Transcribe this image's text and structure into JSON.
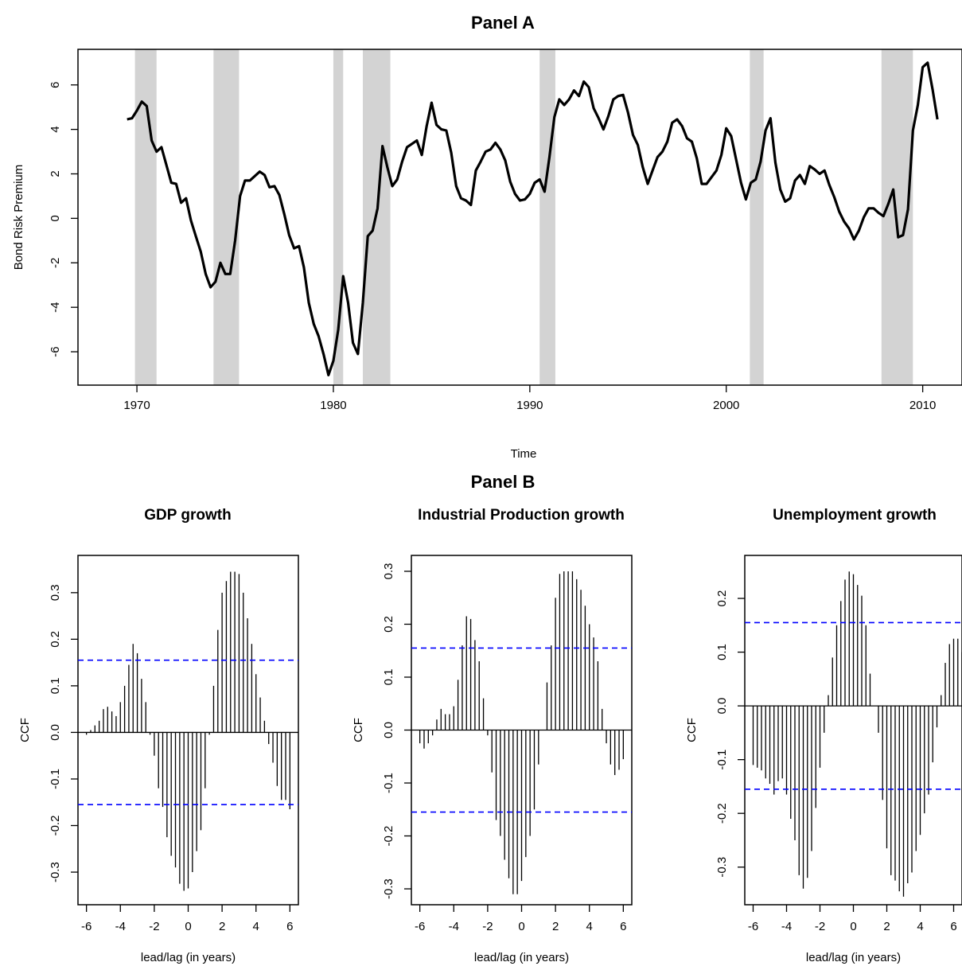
{
  "panel_a_title": "Panel A",
  "panel_b_title": "Panel B",
  "chart_data": [
    {
      "type": "line",
      "title": "Panel A",
      "xlabel": "Time",
      "ylabel": "Bond Risk Premium",
      "xlim": [
        1967,
        2012
      ],
      "ylim": [
        -7.5,
        7.6
      ],
      "x_ticks": [
        1970,
        1980,
        1990,
        2000,
        2010
      ],
      "y_ticks": [
        -6,
        -4,
        -2,
        0,
        2,
        4,
        6
      ],
      "line_color": "#000000",
      "shade_color": "#d3d3d3",
      "recessions": [
        [
          1969.9,
          1971.0
        ],
        [
          1973.9,
          1975.2
        ],
        [
          1980.0,
          1980.5
        ],
        [
          1981.5,
          1982.9
        ],
        [
          1990.5,
          1991.3
        ],
        [
          2001.2,
          2001.9
        ],
        [
          2007.9,
          2009.5
        ]
      ],
      "series": [
        {
          "x": [
            1969.5,
            1969.75,
            1970.0,
            1970.25,
            1970.5,
            1970.75,
            1971.0,
            1971.25,
            1971.5,
            1971.75,
            1972.0,
            1972.25,
            1972.5,
            1972.75,
            1973.0,
            1973.25,
            1973.5,
            1973.75,
            1974.0,
            1974.25,
            1974.5,
            1974.75,
            1975.0,
            1975.25,
            1975.5,
            1975.75,
            1976.0,
            1976.25,
            1976.5,
            1976.75,
            1977.0,
            1977.25,
            1977.5,
            1977.75,
            1978.0,
            1978.25,
            1978.5,
            1978.75,
            1979.0,
            1979.25,
            1979.5,
            1979.75,
            1980.0,
            1980.25,
            1980.5,
            1980.75,
            1981.0,
            1981.25,
            1981.5,
            1981.75,
            1982.0,
            1982.25,
            1982.5,
            1982.75,
            1983.0,
            1983.25,
            1983.5,
            1983.75,
            1984.0,
            1984.25,
            1984.5,
            1984.75,
            1985.0,
            1985.25,
            1985.5,
            1985.75,
            1986.0,
            1986.25,
            1986.5,
            1986.75,
            1987.0,
            1987.25,
            1987.5,
            1987.75,
            1988.0,
            1988.25,
            1988.5,
            1988.75,
            1989.0,
            1989.25,
            1989.5,
            1989.75,
            1990.0,
            1990.25,
            1990.5,
            1990.75,
            1991.0,
            1991.25,
            1991.5,
            1991.75,
            1992.0,
            1992.25,
            1992.5,
            1992.75,
            1993.0,
            1993.25,
            1993.5,
            1993.75,
            1994.0,
            1994.25,
            1994.5,
            1994.75,
            1995.0,
            1995.25,
            1995.5,
            1995.75,
            1996.0,
            1996.25,
            1996.5,
            1996.75,
            1997.0,
            1997.25,
            1997.5,
            1997.75,
            1998.0,
            1998.25,
            1998.5,
            1998.75,
            1999.0,
            1999.25,
            1999.5,
            1999.75,
            2000.0,
            2000.25,
            2000.5,
            2000.75,
            2001.0,
            2001.25,
            2001.5,
            2001.75,
            2002.0,
            2002.25,
            2002.5,
            2002.75,
            2003.0,
            2003.25,
            2003.5,
            2003.75,
            2004.0,
            2004.25,
            2004.5,
            2004.75,
            2005.0,
            2005.25,
            2005.5,
            2005.75,
            2006.0,
            2006.25,
            2006.5,
            2006.75,
            2007.0,
            2007.25,
            2007.5,
            2007.75,
            2008.0,
            2008.25,
            2008.5,
            2008.75,
            2009.0,
            2009.25,
            2009.5,
            2009.75,
            2010.0,
            2010.25,
            2010.5,
            2010.75
          ],
          "values": [
            4.45,
            4.5,
            4.85,
            5.25,
            5.05,
            3.5,
            3.0,
            3.2,
            2.4,
            1.6,
            1.55,
            0.7,
            0.9,
            -0.1,
            -0.8,
            -1.5,
            -2.5,
            -3.1,
            -2.85,
            -2.0,
            -2.5,
            -2.5,
            -1.0,
            1.0,
            1.7,
            1.7,
            1.9,
            2.1,
            1.95,
            1.4,
            1.45,
            1.05,
            0.2,
            -0.75,
            -1.35,
            -1.25,
            -2.2,
            -3.8,
            -4.75,
            -5.3,
            -6.1,
            -7.05,
            -6.4,
            -5.0,
            -2.6,
            -3.8,
            -5.6,
            -6.1,
            -3.8,
            -0.8,
            -0.55,
            0.45,
            3.25,
            2.3,
            1.45,
            1.75,
            2.55,
            3.2,
            3.35,
            3.5,
            2.85,
            4.15,
            5.2,
            4.2,
            4.0,
            3.95,
            2.95,
            1.45,
            0.9,
            0.8,
            0.6,
            2.15,
            2.55,
            3.0,
            3.1,
            3.4,
            3.1,
            2.6,
            1.65,
            1.1,
            0.8,
            0.85,
            1.1,
            1.6,
            1.75,
            1.2,
            2.75,
            4.55,
            5.35,
            5.1,
            5.35,
            5.75,
            5.5,
            6.15,
            5.9,
            4.95,
            4.5,
            4.0,
            4.6,
            5.35,
            5.5,
            5.55,
            4.75,
            3.75,
            3.3,
            2.3,
            1.55,
            2.15,
            2.75,
            3.0,
            3.45,
            4.3,
            4.45,
            4.15,
            3.6,
            3.45,
            2.7,
            1.55,
            1.55,
            1.85,
            2.15,
            2.85,
            4.05,
            3.7,
            2.65,
            1.6,
            0.85,
            1.6,
            1.75,
            2.55,
            3.95,
            4.5,
            2.5,
            1.3,
            0.75,
            0.9,
            1.7,
            1.95,
            1.55,
            2.35,
            2.2,
            2.0,
            2.15,
            1.5,
            0.95,
            0.3,
            -0.15,
            -0.45,
            -0.95,
            -0.55,
            0.05,
            0.45,
            0.45,
            0.25,
            0.1,
            0.65,
            1.3,
            -0.85,
            -0.75,
            0.4,
            3.95,
            5.1,
            6.8,
            7.0,
            5.8,
            4.45
          ]
        }
      ]
    },
    {
      "type": "bar",
      "title": "GDP growth",
      "xlabel": "lead/lag (in years)",
      "ylabel": "CCF",
      "xlim": [
        -6.5,
        6.5
      ],
      "ylim": [
        -0.37,
        0.38
      ],
      "x_ticks": [
        -6,
        -4,
        -2,
        0,
        2,
        4,
        6
      ],
      "x_tick_labels": [
        "-6",
        "-4",
        "-2",
        "0",
        "2",
        "4",
        "6"
      ],
      "y_ticks": [
        -0.3,
        -0.2,
        -0.1,
        0.0,
        0.1,
        0.2,
        0.3
      ],
      "y_tick_labels": [
        "-0.3",
        "-0.2",
        "-0.1",
        "0.0",
        "0.1",
        "0.2",
        "0.3"
      ],
      "confidence_band": 0.155,
      "band_color": "#0000ff",
      "lag_start": -6,
      "lag_step": 0.25,
      "values": [
        -0.005,
        0.005,
        0.015,
        0.025,
        0.05,
        0.055,
        0.045,
        0.035,
        0.065,
        0.1,
        0.145,
        0.19,
        0.17,
        0.115,
        0.065,
        -0.005,
        -0.05,
        -0.12,
        -0.16,
        -0.225,
        -0.265,
        -0.29,
        -0.325,
        -0.34,
        -0.335,
        -0.3,
        -0.255,
        -0.21,
        -0.12,
        -0.005,
        0.1,
        0.22,
        0.3,
        0.325,
        0.345,
        0.345,
        0.34,
        0.3,
        0.245,
        0.19,
        0.125,
        0.075,
        0.025,
        -0.025,
        -0.065,
        -0.115,
        -0.145,
        -0.145,
        -0.165
      ]
    },
    {
      "type": "bar",
      "title": "Industrial Production growth",
      "xlabel": "lead/lag (in years)",
      "ylabel": "CCF",
      "xlim": [
        -6.5,
        6.5
      ],
      "ylim": [
        -0.33,
        0.33
      ],
      "x_ticks": [
        -6,
        -4,
        -2,
        0,
        2,
        4,
        6
      ],
      "x_tick_labels": [
        "-6",
        "-4",
        "-2",
        "0",
        "2",
        "4",
        "6"
      ],
      "y_ticks": [
        -0.3,
        -0.2,
        -0.1,
        0.0,
        0.1,
        0.2,
        0.3
      ],
      "y_tick_labels": [
        "-0.3",
        "-0.2",
        "-0.1",
        "0.0",
        "0.1",
        "0.2",
        "0.3"
      ],
      "confidence_band": 0.155,
      "band_color": "#0000ff",
      "lag_start": -6,
      "lag_step": 0.25,
      "values": [
        -0.025,
        -0.035,
        -0.025,
        -0.01,
        0.02,
        0.04,
        0.03,
        0.03,
        0.045,
        0.095,
        0.16,
        0.215,
        0.21,
        0.17,
        0.13,
        0.06,
        -0.01,
        -0.08,
        -0.17,
        -0.2,
        -0.245,
        -0.28,
        -0.31,
        -0.31,
        -0.285,
        -0.24,
        -0.2,
        -0.15,
        -0.065,
        0.0,
        0.09,
        0.16,
        0.25,
        0.295,
        0.3,
        0.3,
        0.3,
        0.285,
        0.265,
        0.235,
        0.2,
        0.175,
        0.13,
        0.04,
        -0.025,
        -0.065,
        -0.085,
        -0.075,
        -0.055
      ]
    },
    {
      "type": "bar",
      "title": "Unemployment growth",
      "xlabel": "lead/lag (in years)",
      "ylabel": "CCF",
      "xlim": [
        -6.5,
        6.5
      ],
      "ylim": [
        -0.37,
        0.28
      ],
      "x_ticks": [
        -6,
        -4,
        -2,
        0,
        2,
        4,
        6
      ],
      "x_tick_labels": [
        "-6",
        "-4",
        "-2",
        "0",
        "2",
        "4",
        "6"
      ],
      "y_ticks": [
        -0.3,
        -0.2,
        -0.1,
        0.0,
        0.1,
        0.2
      ],
      "y_tick_labels": [
        "-0.3",
        "-0.2",
        "-0.1",
        "0.0",
        "0.1",
        "0.2"
      ],
      "confidence_band": 0.155,
      "band_color": "#0000ff",
      "lag_start": -6,
      "lag_step": 0.25,
      "values": [
        -0.11,
        -0.115,
        -0.12,
        -0.135,
        -0.145,
        -0.165,
        -0.14,
        -0.135,
        -0.165,
        -0.21,
        -0.25,
        -0.315,
        -0.34,
        -0.32,
        -0.27,
        -0.19,
        -0.115,
        -0.05,
        0.02,
        0.09,
        0.15,
        0.195,
        0.235,
        0.25,
        0.245,
        0.225,
        0.205,
        0.15,
        0.06,
        0.0,
        -0.05,
        -0.175,
        -0.265,
        -0.315,
        -0.325,
        -0.345,
        -0.355,
        -0.33,
        -0.31,
        -0.27,
        -0.24,
        -0.2,
        -0.165,
        -0.105,
        -0.04,
        0.02,
        0.08,
        0.115,
        0.125,
        0.125,
        0.1,
        0.07
      ]
    }
  ]
}
